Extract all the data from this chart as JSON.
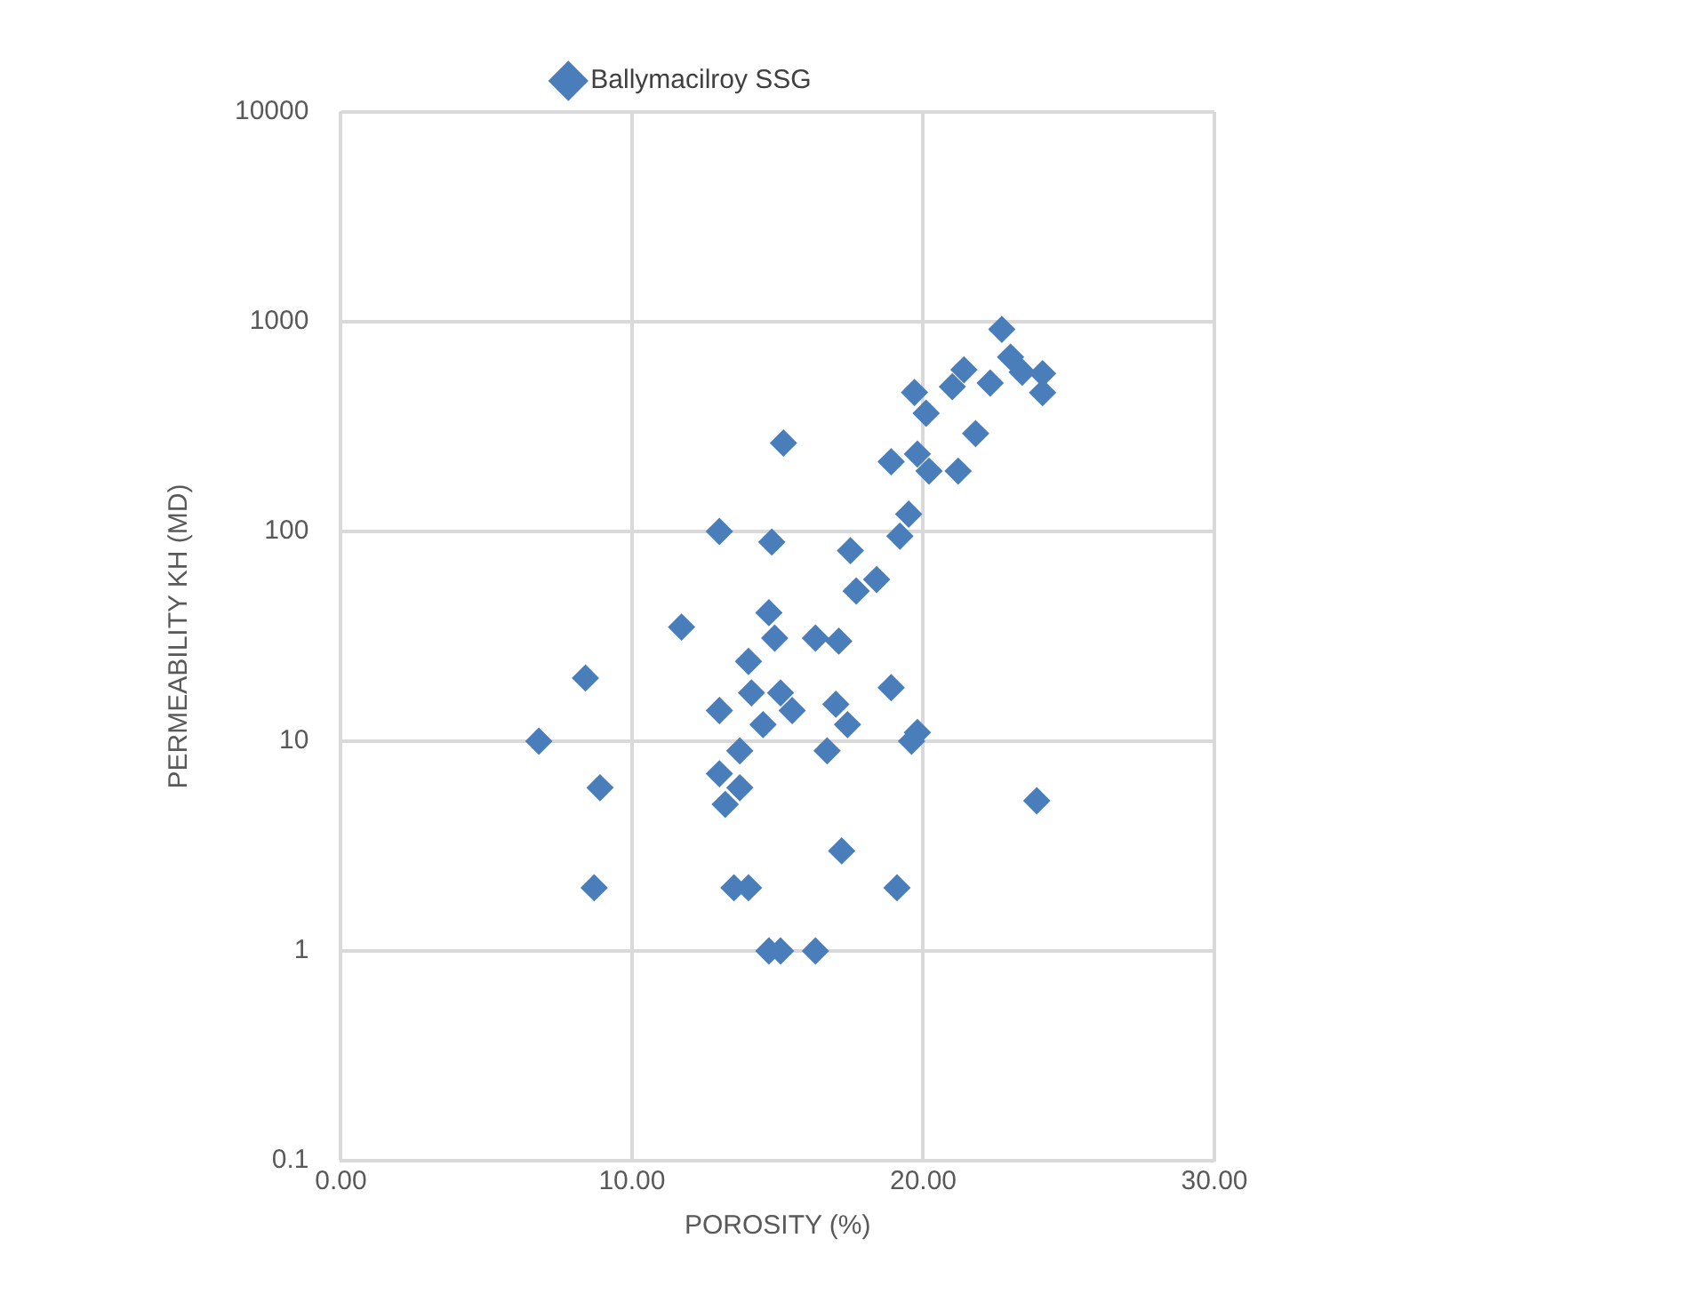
{
  "chart_data": {
    "type": "scatter",
    "xlabel": "POROSITY (%)",
    "ylabel": "PERMEABILITY KH (MD)",
    "xlim": [
      0,
      30
    ],
    "xticks": [
      {
        "value": 0,
        "label": "0.00"
      },
      {
        "value": 10,
        "label": "10.00"
      },
      {
        "value": 20,
        "label": "20.00"
      },
      {
        "value": 30,
        "label": "30.00"
      }
    ],
    "ylim": [
      0.1,
      10000
    ],
    "yticks": [
      0.1,
      1,
      10,
      100,
      1000,
      10000
    ],
    "log": "y",
    "grid": true,
    "legend": "top",
    "marker": "diamond",
    "series": [
      {
        "name": "Ballymacilroy SSG",
        "color": "#4a7ebb",
        "x": [
          6.8,
          8.4,
          8.9,
          8.7,
          11.7,
          13.0,
          14.8,
          15.2,
          13.0,
          13.0,
          13.2,
          13.7,
          13.7,
          13.5,
          14.0,
          14.0,
          14.1,
          14.5,
          14.7,
          14.9,
          15.1,
          15.5,
          14.7,
          15.1,
          16.3,
          16.3,
          17.1,
          17.0,
          17.4,
          16.7,
          17.2,
          17.5,
          17.7,
          18.4,
          18.9,
          19.1,
          18.9,
          19.2,
          19.5,
          19.7,
          19.8,
          19.6,
          19.8,
          20.1,
          20.2,
          21.4,
          21.2,
          21.0,
          21.8,
          22.3,
          22.7,
          23.0,
          23.4,
          24.1,
          24.1,
          23.9
        ],
        "values": [
          10,
          20,
          6,
          2,
          35,
          100,
          89,
          264,
          14,
          7,
          5,
          9,
          6,
          2,
          2,
          24,
          17,
          12,
          41,
          31,
          17,
          14,
          1,
          1,
          1,
          31,
          30,
          15,
          12,
          9,
          3,
          81,
          52,
          59,
          18,
          2,
          215,
          95,
          121,
          460,
          234,
          10,
          11,
          366,
          194,
          590,
          194,
          490,
          293,
          510,
          920,
          678,
          575,
          566,
          459,
          5.2
        ]
      }
    ]
  }
}
